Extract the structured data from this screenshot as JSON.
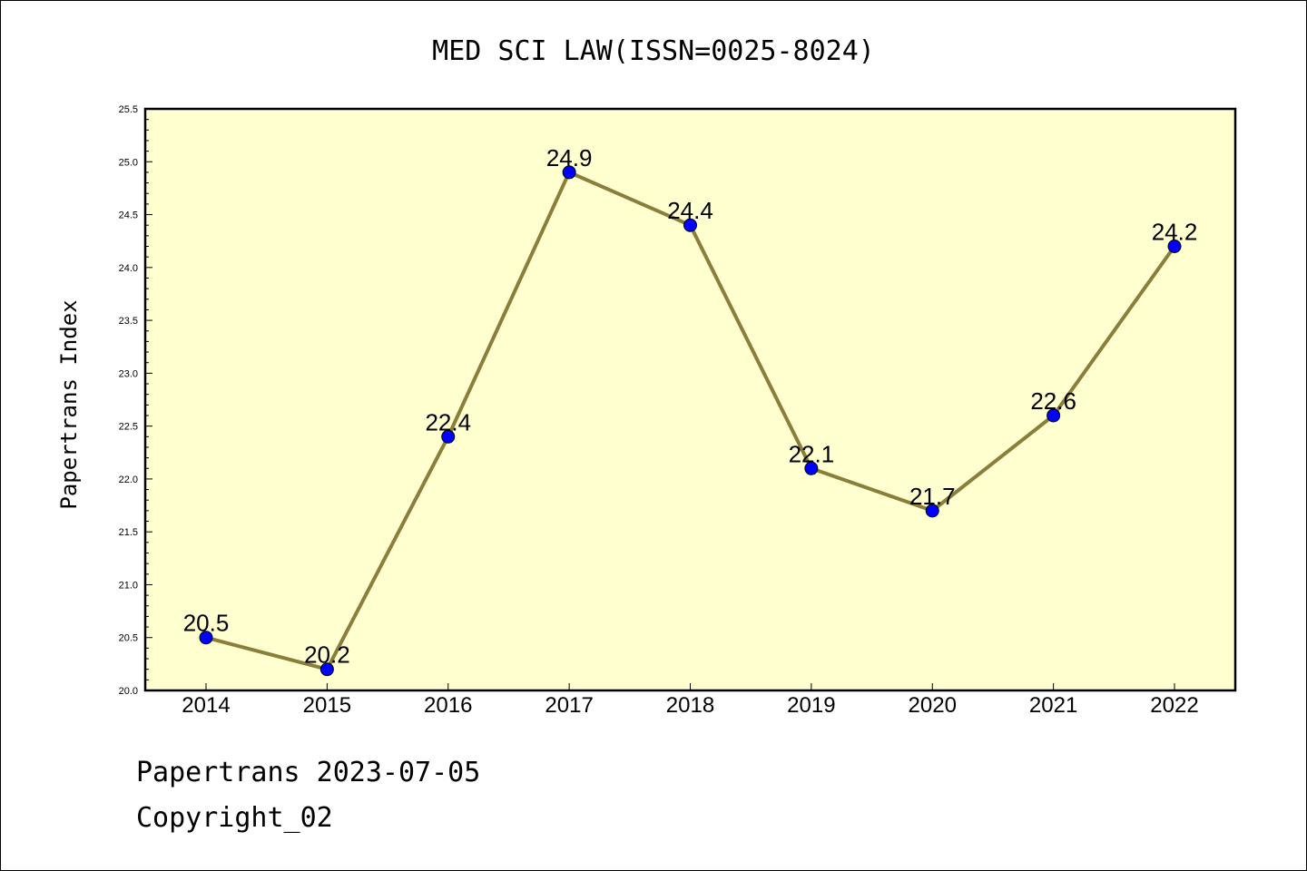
{
  "chart_data": {
    "type": "line",
    "title": "MED SCI LAW(ISSN=0025-8024)",
    "xlabel": "",
    "ylabel": "Papertrans Index",
    "categories": [
      "2014",
      "2015",
      "2016",
      "2017",
      "2018",
      "2019",
      "2020",
      "2021",
      "2022"
    ],
    "values": [
      20.5,
      20.2,
      22.4,
      24.9,
      24.4,
      22.1,
      21.7,
      22.6,
      24.2
    ],
    "data_labels": [
      "20.5",
      "20.2",
      "22.4",
      "24.9",
      "24.4",
      "22.1",
      "21.7",
      "22.6",
      "24.2"
    ],
    "ylim": [
      20.0,
      25.5
    ],
    "yticks": [
      "20.0",
      "20.5",
      "21.0",
      "21.5",
      "22.0",
      "22.5",
      "23.0",
      "23.5",
      "24.0",
      "24.5",
      "25.0",
      "25.5"
    ],
    "grid": false,
    "legend": "none",
    "colors": {
      "plot_background": "#ffffd0",
      "line": "#8b7d3a",
      "marker": "#0000ff"
    }
  },
  "footer": {
    "line1": "Papertrans 2023-07-05",
    "line2": "Copyright_02"
  }
}
